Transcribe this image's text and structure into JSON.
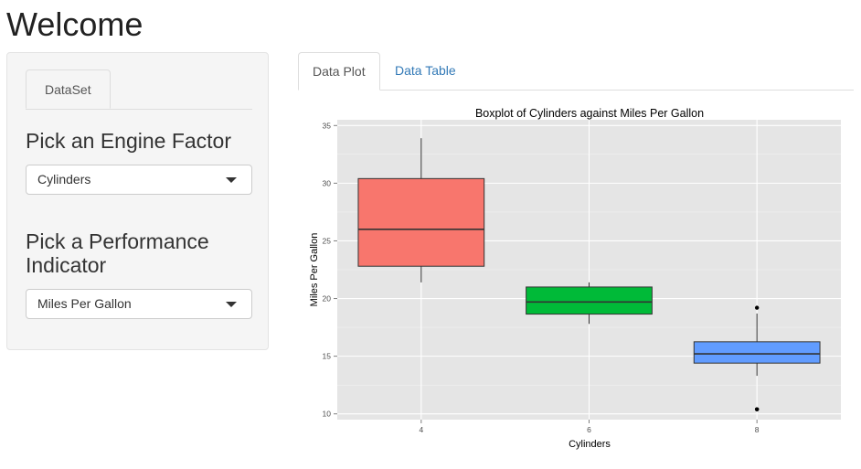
{
  "page": {
    "title": "Welcome"
  },
  "sidebar": {
    "tab_label": "DataSet",
    "engine_label": "Pick an Engine Factor",
    "engine_value": "Cylinders",
    "performance_label_line1": "Pick a Performance",
    "performance_label_line2": "Indicator",
    "performance_value": "Miles Per Gallon"
  },
  "tabs": [
    {
      "label": "Data Plot",
      "active": true
    },
    {
      "label": "Data Table",
      "active": false
    }
  ],
  "colors": {
    "box4": "#F8766D",
    "box6": "#00BA38",
    "box8": "#619CFF",
    "panel": "#E5E5E5",
    "link": "#337ab7"
  },
  "chart_data": {
    "type": "boxplot",
    "title": "Boxplot of Cylinders against Miles Per Gallon",
    "xlabel": "Cylinders",
    "ylabel": "Miles Per Gallon",
    "ylim": [
      9.5,
      35.5
    ],
    "yticks": [
      10,
      15,
      20,
      25,
      30,
      35
    ],
    "grid": true,
    "categories": [
      "4",
      "6",
      "8"
    ],
    "boxes": [
      {
        "category": "4",
        "min": 21.4,
        "q1": 22.8,
        "median": 26.0,
        "q3": 30.4,
        "max": 33.9,
        "outliers": []
      },
      {
        "category": "6",
        "min": 17.8,
        "q1": 18.65,
        "median": 19.7,
        "q3": 21.0,
        "max": 21.4,
        "outliers": []
      },
      {
        "category": "8",
        "min": 13.3,
        "q1": 14.4,
        "median": 15.2,
        "q3": 16.25,
        "max": 18.7,
        "outliers": [
          10.4,
          10.4,
          19.2
        ]
      }
    ]
  }
}
